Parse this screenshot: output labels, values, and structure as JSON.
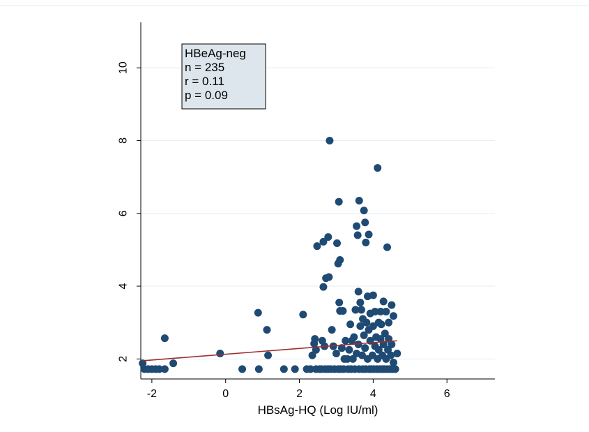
{
  "chart_data": {
    "type": "scatter",
    "title": "",
    "xlabel": "HBsAg-HQ (Log IU/ml)",
    "ylabel": "",
    "xlim": [
      -2.3,
      7.3
    ],
    "ylim": [
      1.45,
      11.25
    ],
    "x_ticks": [
      -2,
      0,
      2,
      4,
      6
    ],
    "y_ticks": [
      2,
      4,
      6,
      8,
      10
    ],
    "grid": "horizontal",
    "legend": "none",
    "annotation": {
      "lines": [
        "HBeAg-neg",
        "n = 235",
        "r = 0.11",
        "p = 0.09"
      ],
      "placement": "top-left"
    },
    "colors": {
      "marker": "#1f4a73",
      "fit_line": "#9b2f2f",
      "grid": "#e6eef3",
      "annotation_bg": "#dde6ec"
    },
    "series": [
      {
        "kind": "points",
        "points": [
          [
            -2.25,
            1.88
          ],
          [
            -2.2,
            1.72
          ],
          [
            -2.1,
            1.72
          ],
          [
            -2.0,
            1.72
          ],
          [
            -1.9,
            1.72
          ],
          [
            -1.8,
            1.72
          ],
          [
            -1.65,
            1.72
          ],
          [
            -1.65,
            2.57
          ],
          [
            -1.42,
            1.88
          ],
          [
            -0.15,
            2.15
          ],
          [
            0.45,
            1.72
          ],
          [
            0.88,
            3.27
          ],
          [
            0.9,
            1.72
          ],
          [
            1.12,
            2.8
          ],
          [
            1.15,
            2.1
          ],
          [
            1.58,
            1.72
          ],
          [
            1.88,
            1.72
          ],
          [
            2.1,
            3.22
          ],
          [
            2.2,
            1.72
          ],
          [
            2.3,
            1.72
          ],
          [
            2.35,
            2.1
          ],
          [
            2.4,
            2.42
          ],
          [
            2.42,
            2.55
          ],
          [
            2.45,
            1.72
          ],
          [
            2.45,
            2.25
          ],
          [
            2.48,
            5.1
          ],
          [
            2.55,
            1.72
          ],
          [
            2.6,
            1.72
          ],
          [
            2.62,
            2.5
          ],
          [
            2.65,
            5.22
          ],
          [
            2.65,
            3.98
          ],
          [
            2.68,
            2.35
          ],
          [
            2.7,
            1.72
          ],
          [
            2.72,
            4.22
          ],
          [
            2.78,
            1.72
          ],
          [
            2.78,
            5.35
          ],
          [
            2.8,
            4.25
          ],
          [
            2.82,
            8.0
          ],
          [
            2.85,
            1.72
          ],
          [
            2.88,
            2.8
          ],
          [
            2.92,
            2.35
          ],
          [
            2.95,
            1.72
          ],
          [
            3.0,
            2.15
          ],
          [
            3.02,
            5.18
          ],
          [
            3.05,
            1.72
          ],
          [
            3.05,
            4.62
          ],
          [
            3.07,
            6.32
          ],
          [
            3.08,
            3.55
          ],
          [
            3.1,
            4.72
          ],
          [
            3.1,
            3.32
          ],
          [
            3.12,
            1.72
          ],
          [
            3.15,
            2.3
          ],
          [
            3.18,
            3.32
          ],
          [
            3.2,
            1.72
          ],
          [
            3.22,
            2.0
          ],
          [
            3.25,
            2.5
          ],
          [
            3.3,
            2.0
          ],
          [
            3.32,
            1.72
          ],
          [
            3.35,
            2.25
          ],
          [
            3.38,
            2.95
          ],
          [
            3.4,
            1.72
          ],
          [
            3.42,
            2.5
          ],
          [
            3.45,
            2.0
          ],
          [
            3.48,
            2.6
          ],
          [
            3.5,
            1.72
          ],
          [
            3.52,
            3.35
          ],
          [
            3.55,
            2.15
          ],
          [
            3.55,
            5.65
          ],
          [
            3.58,
            5.4
          ],
          [
            3.6,
            3.85
          ],
          [
            3.6,
            2.4
          ],
          [
            3.62,
            6.35
          ],
          [
            3.62,
            1.72
          ],
          [
            3.65,
            2.9
          ],
          [
            3.65,
            3.55
          ],
          [
            3.68,
            3.35
          ],
          [
            3.7,
            2.1
          ],
          [
            3.72,
            1.72
          ],
          [
            3.72,
            3.1
          ],
          [
            3.75,
            6.08
          ],
          [
            3.75,
            2.65
          ],
          [
            3.78,
            5.75
          ],
          [
            3.78,
            2.3
          ],
          [
            3.8,
            5.2
          ],
          [
            3.8,
            1.72
          ],
          [
            3.82,
            3.0
          ],
          [
            3.85,
            2.0
          ],
          [
            3.85,
            3.72
          ],
          [
            3.88,
            5.42
          ],
          [
            3.88,
            2.8
          ],
          [
            3.9,
            1.72
          ],
          [
            3.92,
            3.25
          ],
          [
            3.92,
            2.5
          ],
          [
            3.95,
            1.72
          ],
          [
            3.98,
            2.1
          ],
          [
            4.0,
            2.9
          ],
          [
            4.0,
            3.75
          ],
          [
            4.02,
            1.72
          ],
          [
            4.05,
            2.35
          ],
          [
            4.05,
            3.3
          ],
          [
            4.08,
            2.6
          ],
          [
            4.1,
            1.72
          ],
          [
            4.12,
            2.0
          ],
          [
            4.12,
            7.25
          ],
          [
            4.15,
            3.0
          ],
          [
            4.15,
            2.25
          ],
          [
            4.18,
            1.72
          ],
          [
            4.2,
            2.55
          ],
          [
            4.2,
            3.3
          ],
          [
            4.22,
            2.95
          ],
          [
            4.25,
            1.72
          ],
          [
            4.25,
            2.1
          ],
          [
            4.28,
            3.58
          ],
          [
            4.28,
            2.4
          ],
          [
            4.3,
            1.72
          ],
          [
            4.32,
            2.7
          ],
          [
            4.35,
            2.0
          ],
          [
            4.35,
            3.3
          ],
          [
            4.38,
            5.07
          ],
          [
            4.38,
            1.72
          ],
          [
            4.4,
            2.25
          ],
          [
            4.42,
            3.0
          ],
          [
            4.42,
            2.55
          ],
          [
            4.45,
            1.72
          ],
          [
            4.48,
            2.1
          ],
          [
            4.5,
            3.48
          ],
          [
            4.5,
            2.4
          ],
          [
            4.52,
            1.72
          ],
          [
            4.55,
            3.18
          ],
          [
            4.55,
            1.9
          ],
          [
            4.6,
            1.72
          ],
          [
            4.65,
            2.15
          ]
        ]
      },
      {
        "kind": "fit_line",
        "from": [
          -2.25,
          1.95
        ],
        "to": [
          4.65,
          2.5
        ]
      }
    ]
  }
}
